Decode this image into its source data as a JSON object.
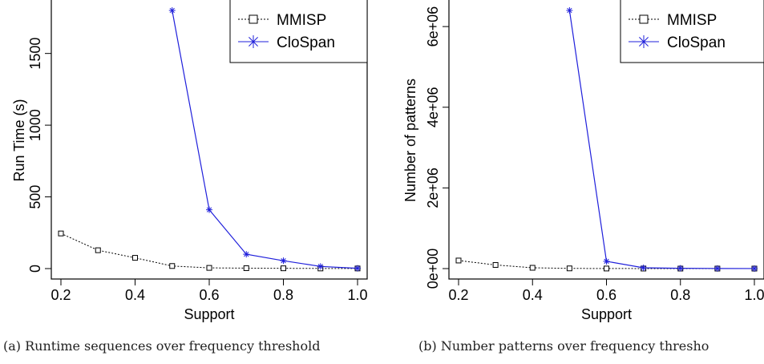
{
  "captions": {
    "a": "(a) Runtime sequences over frequency threshold",
    "b": "(b) Number patterns over frequency thresho"
  },
  "chart_data": [
    {
      "type": "line",
      "xlabel": "Support",
      "ylabel": "Run Time (s)",
      "x": [
        0.2,
        0.3,
        0.4,
        0.5,
        0.6,
        0.7,
        0.8,
        0.9,
        1.0
      ],
      "xticks": [
        "0.2",
        "0.4",
        "0.6",
        "0.8",
        "1.0"
      ],
      "xtick_values": [
        0.2,
        0.4,
        0.6,
        0.8,
        1.0
      ],
      "yticks": [
        "0",
        "500",
        "1000",
        "1500"
      ],
      "ytick_values": [
        0,
        500,
        1000,
        1500
      ],
      "xlim": [
        0.2,
        1.0
      ],
      "ylim": [
        0,
        1800
      ],
      "legend": "top-right",
      "series": [
        {
          "name": "MMISP",
          "color": "#000000",
          "style": "dotted",
          "marker": "square",
          "x": [
            0.2,
            0.3,
            0.4,
            0.5,
            0.6,
            0.7,
            0.8,
            0.9,
            1.0
          ],
          "y": [
            245,
            128,
            75,
            18,
            5,
            3,
            2,
            1,
            1
          ]
        },
        {
          "name": "CloSpan",
          "color": "#1f1fdb",
          "style": "solid",
          "marker": "asterisk",
          "x": [
            0.5,
            0.6,
            0.7,
            0.8,
            0.9,
            1.0
          ],
          "y": [
            1800,
            410,
            100,
            55,
            15,
            2
          ]
        }
      ]
    },
    {
      "type": "line",
      "xlabel": "Support",
      "ylabel": "Number of patterns",
      "x": [
        0.2,
        0.3,
        0.4,
        0.5,
        0.6,
        0.7,
        0.8,
        0.9,
        1.0
      ],
      "xticks": [
        "0.2",
        "0.4",
        "0.6",
        "0.8",
        "1.0"
      ],
      "xtick_values": [
        0.2,
        0.4,
        0.6,
        0.8,
        1.0
      ],
      "yticks": [
        "0e+00",
        "2e+06",
        "4e+06",
        "6e+06"
      ],
      "ytick_values": [
        0,
        2000000,
        4000000,
        6000000
      ],
      "xlim": [
        0.2,
        1.0
      ],
      "ylim": [
        0,
        6400000
      ],
      "legend": "top-right",
      "series": [
        {
          "name": "MMISP",
          "color": "#000000",
          "style": "dotted",
          "marker": "square",
          "x": [
            0.2,
            0.3,
            0.4,
            0.5,
            0.6,
            0.7,
            0.8,
            0.9,
            1.0
          ],
          "y": [
            200000,
            90000,
            20000,
            5000,
            2000,
            1000,
            500,
            200,
            100
          ]
        },
        {
          "name": "CloSpan",
          "color": "#1f1fdb",
          "style": "solid",
          "marker": "asterisk",
          "x": [
            0.5,
            0.6,
            0.7,
            0.8,
            0.9,
            1.0
          ],
          "y": [
            6400000,
            180000,
            20000,
            8000,
            3000,
            1000
          ]
        }
      ]
    }
  ]
}
